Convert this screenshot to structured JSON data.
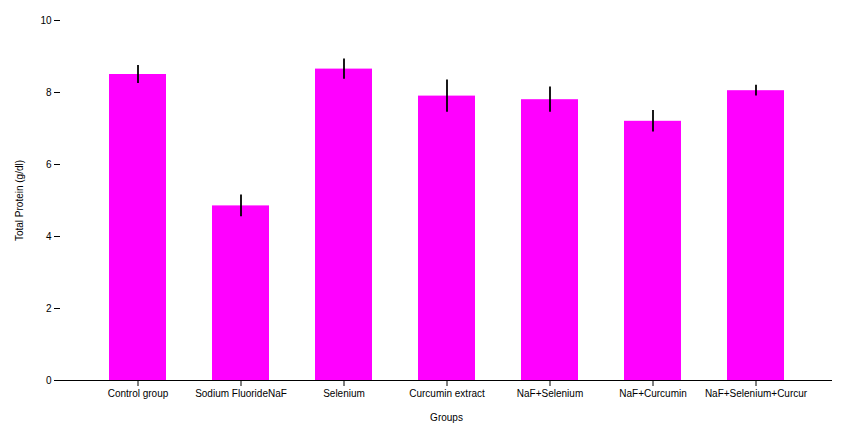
{
  "chart_data": {
    "type": "bar",
    "categories": [
      "Control group",
      "Sodium FluorideNaF",
      "Selenium",
      "Curcumin extract",
      "NaF+Selenium",
      "NaF+Curcumin",
      "NaF+Selenium+Curcur"
    ],
    "values": [
      8.5,
      4.85,
      8.65,
      7.9,
      7.8,
      7.2,
      8.05
    ],
    "errors": [
      0.25,
      0.3,
      0.28,
      0.45,
      0.35,
      0.3,
      0.15
    ],
    "color": "#FF00FF",
    "xlabel": "Groups",
    "ylabel": "Total Protein (g/dl)",
    "ylim": [
      0,
      10
    ],
    "yticks": [
      0,
      2,
      4,
      6,
      8,
      10
    ],
    "grid": false
  }
}
